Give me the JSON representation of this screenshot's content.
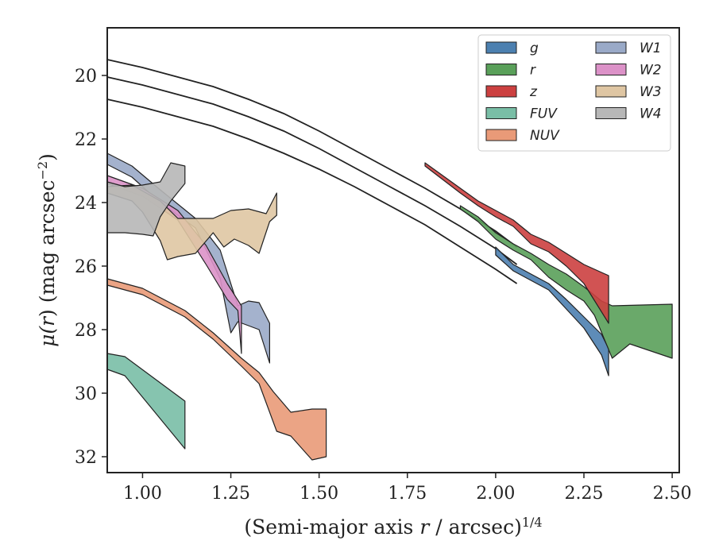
{
  "chart_data": {
    "type": "area",
    "xlabel_parts": {
      "before": "(Semi-major axis ",
      "var": "r",
      "after": " / arcsec)",
      "sup": "1/4"
    },
    "ylabel_parts": {
      "before": "μ(",
      "var": "r",
      "after": ") (mag arcsec",
      "sup": "−2",
      "close": ")"
    },
    "xlim": [
      0.9,
      2.52
    ],
    "ylim": [
      32.5,
      18.5
    ],
    "y_inverted": true,
    "x_ticks": [
      1.0,
      1.25,
      1.5,
      1.75,
      2.0,
      2.25,
      2.5
    ],
    "x_tick_labels": [
      "1.00",
      "1.25",
      "1.50",
      "1.75",
      "2.00",
      "2.25",
      "2.50"
    ],
    "y_ticks": [
      20,
      22,
      24,
      26,
      28,
      30,
      32
    ],
    "y_tick_labels": [
      "20",
      "22",
      "24",
      "26",
      "28",
      "30",
      "32"
    ],
    "grid": false,
    "legend_position": "top-right",
    "legend_columns": 2,
    "model_curves": [
      {
        "x": [
          0.9,
          1.0,
          1.1,
          1.2,
          1.3,
          1.4,
          1.5,
          1.6,
          1.7,
          1.8,
          1.9,
          2.0,
          2.06
        ],
        "y": [
          19.5,
          19.75,
          20.05,
          20.35,
          20.75,
          21.2,
          21.75,
          22.35,
          22.95,
          23.55,
          24.2,
          24.9,
          25.4
        ]
      },
      {
        "x": [
          0.9,
          1.0,
          1.1,
          1.2,
          1.3,
          1.4,
          1.5,
          1.6,
          1.7,
          1.8,
          1.9,
          2.0,
          2.06
        ],
        "y": [
          20.05,
          20.3,
          20.6,
          20.9,
          21.3,
          21.75,
          22.3,
          22.9,
          23.5,
          24.1,
          24.75,
          25.45,
          25.95
        ]
      },
      {
        "x": [
          0.9,
          1.0,
          1.1,
          1.2,
          1.3,
          1.4,
          1.5,
          1.6,
          1.7,
          1.8,
          1.9,
          2.0,
          2.06
        ],
        "y": [
          20.75,
          21.0,
          21.3,
          21.6,
          22.0,
          22.45,
          22.95,
          23.5,
          24.1,
          24.7,
          25.4,
          26.1,
          26.55
        ]
      }
    ],
    "series": [
      {
        "name": "g",
        "color": "#4c80b0",
        "x_upper": [
          2.0,
          2.05,
          2.1,
          2.15,
          2.2,
          2.25,
          2.3,
          2.32
        ],
        "y_upper": [
          25.4,
          25.95,
          26.25,
          26.55,
          27.05,
          27.6,
          28.15,
          28.6
        ],
        "x_lower": [
          2.0,
          2.05,
          2.1,
          2.15,
          2.2,
          2.25,
          2.3,
          2.32
        ],
        "y_lower": [
          25.65,
          26.15,
          26.45,
          26.75,
          27.35,
          27.95,
          28.8,
          29.45
        ]
      },
      {
        "name": "r",
        "color": "#5aa05a",
        "x_upper": [
          1.9,
          1.95,
          2.0,
          2.05,
          2.1,
          2.15,
          2.2,
          2.25,
          2.3,
          2.33,
          2.5
        ],
        "y_upper": [
          24.1,
          24.45,
          24.95,
          25.3,
          25.6,
          25.95,
          26.25,
          26.65,
          27.1,
          27.25,
          27.2
        ],
        "x_lower": [
          1.9,
          1.95,
          2.0,
          2.05,
          2.1,
          2.15,
          2.2,
          2.25,
          2.28,
          2.33,
          2.38,
          2.5
        ],
        "y_lower": [
          24.2,
          24.6,
          25.15,
          25.5,
          25.8,
          26.35,
          26.75,
          27.1,
          27.55,
          28.9,
          28.45,
          28.9
        ]
      },
      {
        "name": "z",
        "color": "#cc4040",
        "x_upper": [
          1.8,
          1.9,
          1.95,
          2.0,
          2.05,
          2.1,
          2.15,
          2.2,
          2.25,
          2.32
        ],
        "y_upper": [
          22.75,
          23.55,
          23.95,
          24.25,
          24.55,
          25.0,
          25.25,
          25.6,
          25.95,
          26.3
        ],
        "x_lower": [
          1.8,
          1.9,
          1.95,
          2.0,
          2.05,
          2.1,
          2.15,
          2.2,
          2.25,
          2.32
        ],
        "y_lower": [
          22.85,
          23.7,
          24.1,
          24.45,
          24.75,
          25.3,
          25.55,
          26.0,
          26.55,
          27.8
        ]
      },
      {
        "name": "FUV",
        "color": "#79bea6",
        "x_upper": [
          0.9,
          0.95,
          1.12
        ],
        "y_upper": [
          28.75,
          28.85,
          30.25
        ],
        "x_lower": [
          0.9,
          0.95,
          1.12
        ],
        "y_lower": [
          29.25,
          29.45,
          31.75
        ]
      },
      {
        "name": "NUV",
        "color": "#e99a78",
        "x_upper": [
          0.9,
          1.0,
          1.12,
          1.2,
          1.28,
          1.33,
          1.37,
          1.42,
          1.48,
          1.52
        ],
        "y_upper": [
          26.4,
          26.7,
          27.4,
          28.1,
          28.9,
          29.35,
          29.95,
          30.6,
          30.5,
          30.5
        ],
        "x_lower": [
          0.9,
          1.0,
          1.12,
          1.2,
          1.28,
          1.33,
          1.38,
          1.42,
          1.44,
          1.48,
          1.52
        ],
        "y_lower": [
          26.6,
          26.9,
          27.6,
          28.3,
          29.15,
          29.7,
          31.2,
          31.35,
          31.6,
          32.1,
          32.0
        ]
      },
      {
        "name": "W1",
        "color": "#9aaac8",
        "x_upper": [
          0.9,
          0.97,
          1.05,
          1.15,
          1.22,
          1.27,
          1.3,
          1.33,
          1.36
        ],
        "y_upper": [
          22.45,
          22.85,
          23.6,
          24.5,
          25.5,
          27.25,
          27.1,
          27.15,
          27.8
        ],
        "x_lower": [
          0.9,
          0.97,
          1.05,
          1.15,
          1.22,
          1.25,
          1.27,
          1.33,
          1.36
        ],
        "y_lower": [
          22.8,
          23.2,
          24.0,
          24.8,
          26.4,
          28.1,
          27.75,
          28.0,
          29.05
        ]
      },
      {
        "name": "W2",
        "color": "#dc92c8",
        "x_upper": [
          0.9,
          1.0,
          1.1,
          1.18,
          1.24,
          1.28
        ],
        "y_upper": [
          23.15,
          23.55,
          24.25,
          25.35,
          26.55,
          27.25
        ],
        "x_lower": [
          0.9,
          1.0,
          1.1,
          1.18,
          1.24,
          1.27,
          1.28
        ],
        "y_lower": [
          23.4,
          23.8,
          24.55,
          25.95,
          27.05,
          27.4,
          28.75
        ]
      },
      {
        "name": "W3",
        "color": "#dfc6a3",
        "x_upper": [
          0.9,
          0.97,
          1.05,
          1.1,
          1.15,
          1.2,
          1.22,
          1.25,
          1.3,
          1.35,
          1.38
        ],
        "y_upper": [
          23.5,
          23.45,
          23.95,
          24.5,
          24.5,
          24.5,
          24.4,
          24.25,
          24.2,
          24.35,
          23.7
        ],
        "x_lower": [
          0.9,
          0.97,
          1.0,
          1.05,
          1.07,
          1.1,
          1.15,
          1.2,
          1.23,
          1.26,
          1.3,
          1.33,
          1.36,
          1.38
        ],
        "y_lower": [
          23.7,
          23.95,
          24.3,
          25.2,
          25.8,
          25.7,
          25.6,
          24.95,
          25.4,
          25.15,
          25.35,
          25.6,
          24.6,
          24.4
        ]
      },
      {
        "name": "W4",
        "color": "#b7b7b7",
        "x_upper": [
          0.9,
          0.95,
          1.0,
          1.05,
          1.08,
          1.12,
          1.12
        ],
        "y_upper": [
          23.35,
          23.5,
          23.45,
          23.35,
          22.75,
          22.85,
          23.4
        ],
        "x_lower": [
          0.9,
          0.95,
          1.0,
          1.03,
          1.05,
          1.08
        ],
        "y_lower": [
          24.95,
          24.95,
          25.0,
          25.05,
          24.45,
          23.95
        ]
      }
    ]
  }
}
